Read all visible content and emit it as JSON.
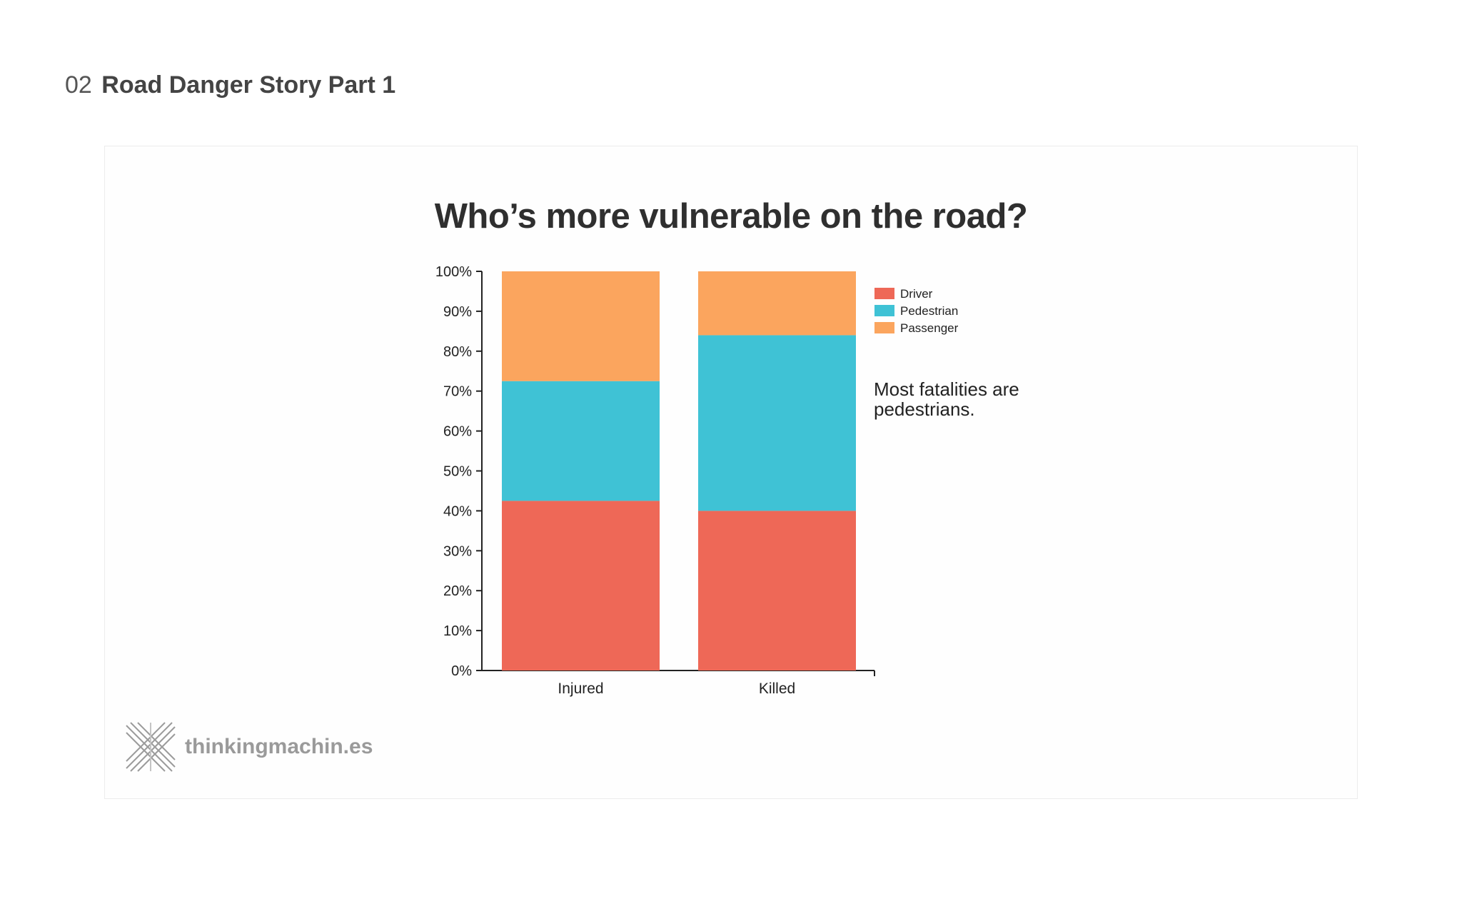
{
  "header": {
    "number": "02",
    "title": "Road Danger Story Part 1"
  },
  "logo": {
    "text": "thinkingmachin.es",
    "icon": "crosshatch-x-logo"
  },
  "chart_data": {
    "type": "bar",
    "stacked": true,
    "title": "Who’s more vulnerable on the road?",
    "categories": [
      "Injured",
      "Killed"
    ],
    "series": [
      {
        "name": "Driver",
        "color": "#ee6857",
        "values": [
          42.5,
          40
        ]
      },
      {
        "name": "Pedestrian",
        "color": "#3fc2d5",
        "values": [
          30,
          44
        ]
      },
      {
        "name": "Passenger",
        "color": "#fba55e",
        "values": [
          27.5,
          16
        ]
      }
    ],
    "yticks": [
      "0%",
      "10%",
      "20%",
      "30%",
      "40%",
      "50%",
      "60%",
      "70%",
      "80%",
      "90%",
      "100%"
    ],
    "ylim": [
      0,
      100
    ],
    "legend_position": "right",
    "annotation": [
      "Most fatalities are",
      "pedestrians."
    ]
  }
}
